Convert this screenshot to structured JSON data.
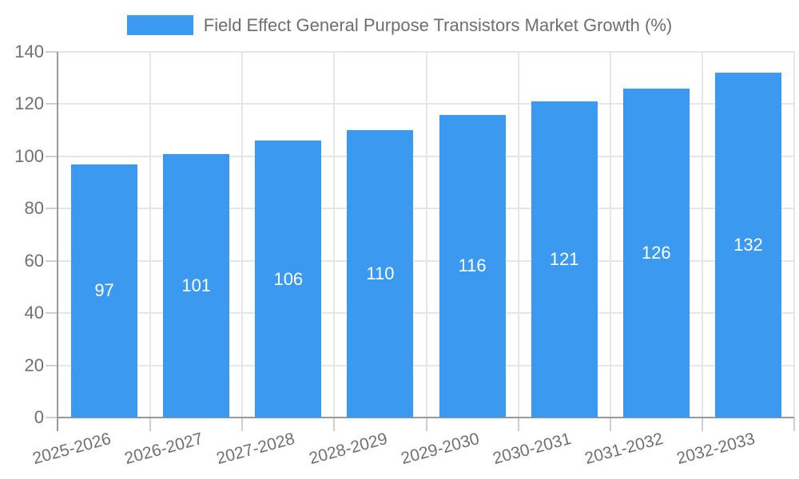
{
  "chart_data": {
    "type": "bar",
    "title": "Field Effect General Purpose Transistors Market Growth (%)",
    "categories": [
      "2025-2026",
      "2026-2027",
      "2027-2028",
      "2028-2029",
      "2029-2030",
      "2030-2031",
      "2031-2032",
      "2032-2033"
    ],
    "values": [
      97,
      101,
      106,
      110,
      116,
      121,
      126,
      132
    ],
    "xlabel": "",
    "ylabel": "",
    "ylim": [
      0,
      140
    ],
    "yticks": [
      0,
      20,
      40,
      60,
      80,
      100,
      120,
      140
    ],
    "grid": true,
    "legend_position": "top",
    "bar_color": "#3B99F0",
    "value_label_color": "#ffffff"
  },
  "colors": {
    "grid": "#e6e6e6",
    "axis": "#999999",
    "tick": "#cfcfcf",
    "axis_text": "#707070",
    "legend_text": "#6e6e6e",
    "background": "#ffffff"
  }
}
